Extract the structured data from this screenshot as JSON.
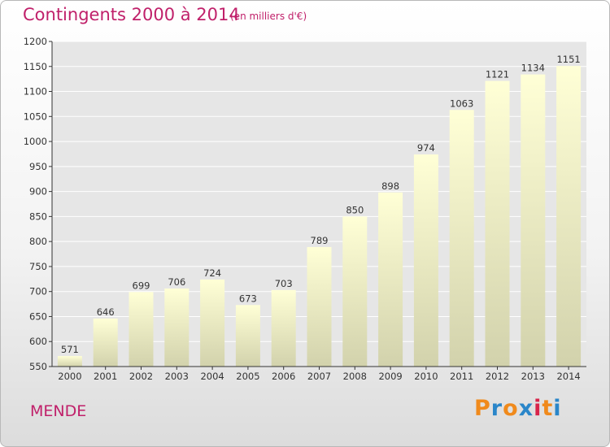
{
  "chart_data": {
    "type": "bar",
    "title": "Contingents 2000 à 2014",
    "subtitle": "(en milliers d'€)",
    "categories": [
      "2000",
      "2001",
      "2002",
      "2003",
      "2004",
      "2005",
      "2006",
      "2007",
      "2008",
      "2009",
      "2010",
      "2011",
      "2012",
      "2013",
      "2014"
    ],
    "values": [
      571,
      646,
      699,
      706,
      724,
      673,
      703,
      789,
      850,
      898,
      974,
      1063,
      1121,
      1134,
      1151
    ],
    "ylim": [
      550,
      1200
    ],
    "yticks": [
      550,
      600,
      650,
      700,
      750,
      800,
      850,
      900,
      950,
      1000,
      1050,
      1100,
      1150,
      1200
    ],
    "grid": true,
    "colors": {
      "bar_top": "#ffffd6",
      "bar_bottom": "#d2d2ac",
      "grid": "#ffffff",
      "accent": "#c0206a"
    }
  },
  "footer": {
    "city": "MENDE"
  },
  "logo": {
    "letters": [
      "P",
      "r",
      "o",
      "x",
      "i",
      "t",
      "i"
    ],
    "colors": [
      "#f08a1c",
      "#2a86c9",
      "#f08a1c",
      "#2a86c9",
      "#d8244a",
      "#f08a1c",
      "#2a86c9"
    ]
  }
}
